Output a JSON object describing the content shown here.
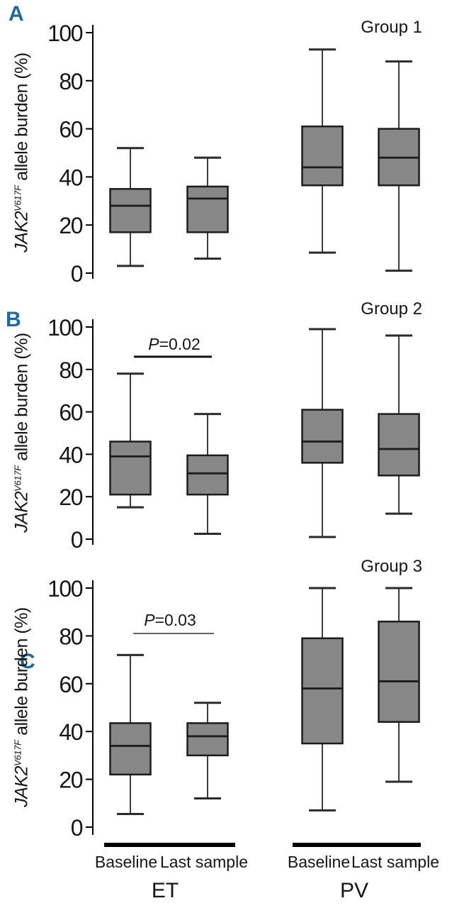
{
  "figure": {
    "y_axis": {
      "gene": "JAK2",
      "superscript": "V617F",
      "rest": " allele burden (%)",
      "range": [
        0,
        100
      ]
    },
    "x_axis": {
      "categories": [
        "Baseline",
        "Last sample"
      ],
      "cohorts": [
        "ET",
        "PV"
      ]
    },
    "colors": {
      "box_fill": "#878787",
      "box_stroke": "#1c1c1c",
      "whisker": "#3d3d3d",
      "axis": "#000000",
      "panel_letter": "#1c6b9e",
      "text": "#161616"
    }
  },
  "chart_data": [
    {
      "type": "boxplot",
      "panel": "A",
      "group_label": "Group 1",
      "ylabel": "JAK2 V617F allele burden (%)",
      "ylim": [
        0,
        100
      ],
      "yticks": [
        0,
        20,
        40,
        60,
        80,
        100
      ],
      "categories": [
        "ET Baseline",
        "ET Last sample",
        "PV Baseline",
        "PV Last sample"
      ],
      "series": [
        {
          "name": "ET Baseline",
          "min": 3,
          "q1": 17,
          "median": 28,
          "q3": 35,
          "max": 52
        },
        {
          "name": "ET Last sample",
          "min": 6,
          "q1": 17,
          "median": 31,
          "q3": 36,
          "max": 48
        },
        {
          "name": "PV Baseline",
          "min": 8.5,
          "q1": 36.5,
          "median": 44,
          "q3": 61,
          "max": 93
        },
        {
          "name": "PV Last sample",
          "min": 1,
          "q1": 36.5,
          "median": 48,
          "q3": 60,
          "max": 88
        }
      ],
      "p_value": null
    },
    {
      "type": "boxplot",
      "panel": "B",
      "group_label": "Group 2",
      "ylabel": "JAK2 V617F allele burden (%)",
      "ylim": [
        0,
        100
      ],
      "yticks": [
        0,
        20,
        40,
        60,
        80,
        100
      ],
      "categories": [
        "ET Baseline",
        "ET Last sample",
        "PV Baseline",
        "PV Last sample"
      ],
      "series": [
        {
          "name": "ET Baseline",
          "min": 15,
          "q1": 21,
          "median": 39,
          "q3": 46,
          "max": 78
        },
        {
          "name": "ET Last sample",
          "min": 2.5,
          "q1": 21,
          "median": 31,
          "q3": 39.5,
          "max": 59
        },
        {
          "name": "PV Baseline",
          "min": 1,
          "q1": 36,
          "median": 46,
          "q3": 61,
          "max": 99
        },
        {
          "name": "PV Last sample",
          "min": 12,
          "q1": 30,
          "median": 42.5,
          "q3": 59,
          "max": 96
        }
      ],
      "p_value": {
        "label": "P=0.02",
        "between": [
          "ET Baseline",
          "ET Last sample"
        ],
        "line_y": 86
      }
    },
    {
      "type": "boxplot",
      "panel": "C",
      "group_label": "Group 3",
      "ylabel": "JAK2 V617F allele burden (%)",
      "ylim": [
        0,
        100
      ],
      "yticks": [
        0,
        20,
        40,
        60,
        80,
        100
      ],
      "categories": [
        "ET Baseline",
        "ET Last sample",
        "PV Baseline",
        "PV Last sample"
      ],
      "series": [
        {
          "name": "ET Baseline",
          "min": 5.5,
          "q1": 22,
          "median": 34,
          "q3": 43.5,
          "max": 72
        },
        {
          "name": "ET Last sample",
          "min": 12,
          "q1": 30,
          "median": 38,
          "q3": 43.5,
          "max": 52
        },
        {
          "name": "PV Baseline",
          "min": 7,
          "q1": 35,
          "median": 58,
          "q3": 79,
          "max": 100
        },
        {
          "name": "PV Last sample",
          "min": 19,
          "q1": 44,
          "median": 61,
          "q3": 86,
          "max": 100
        }
      ],
      "p_value": {
        "label": "P=0.03",
        "between": [
          "ET Baseline",
          "ET Last sample"
        ],
        "line_y": 81
      }
    }
  ]
}
